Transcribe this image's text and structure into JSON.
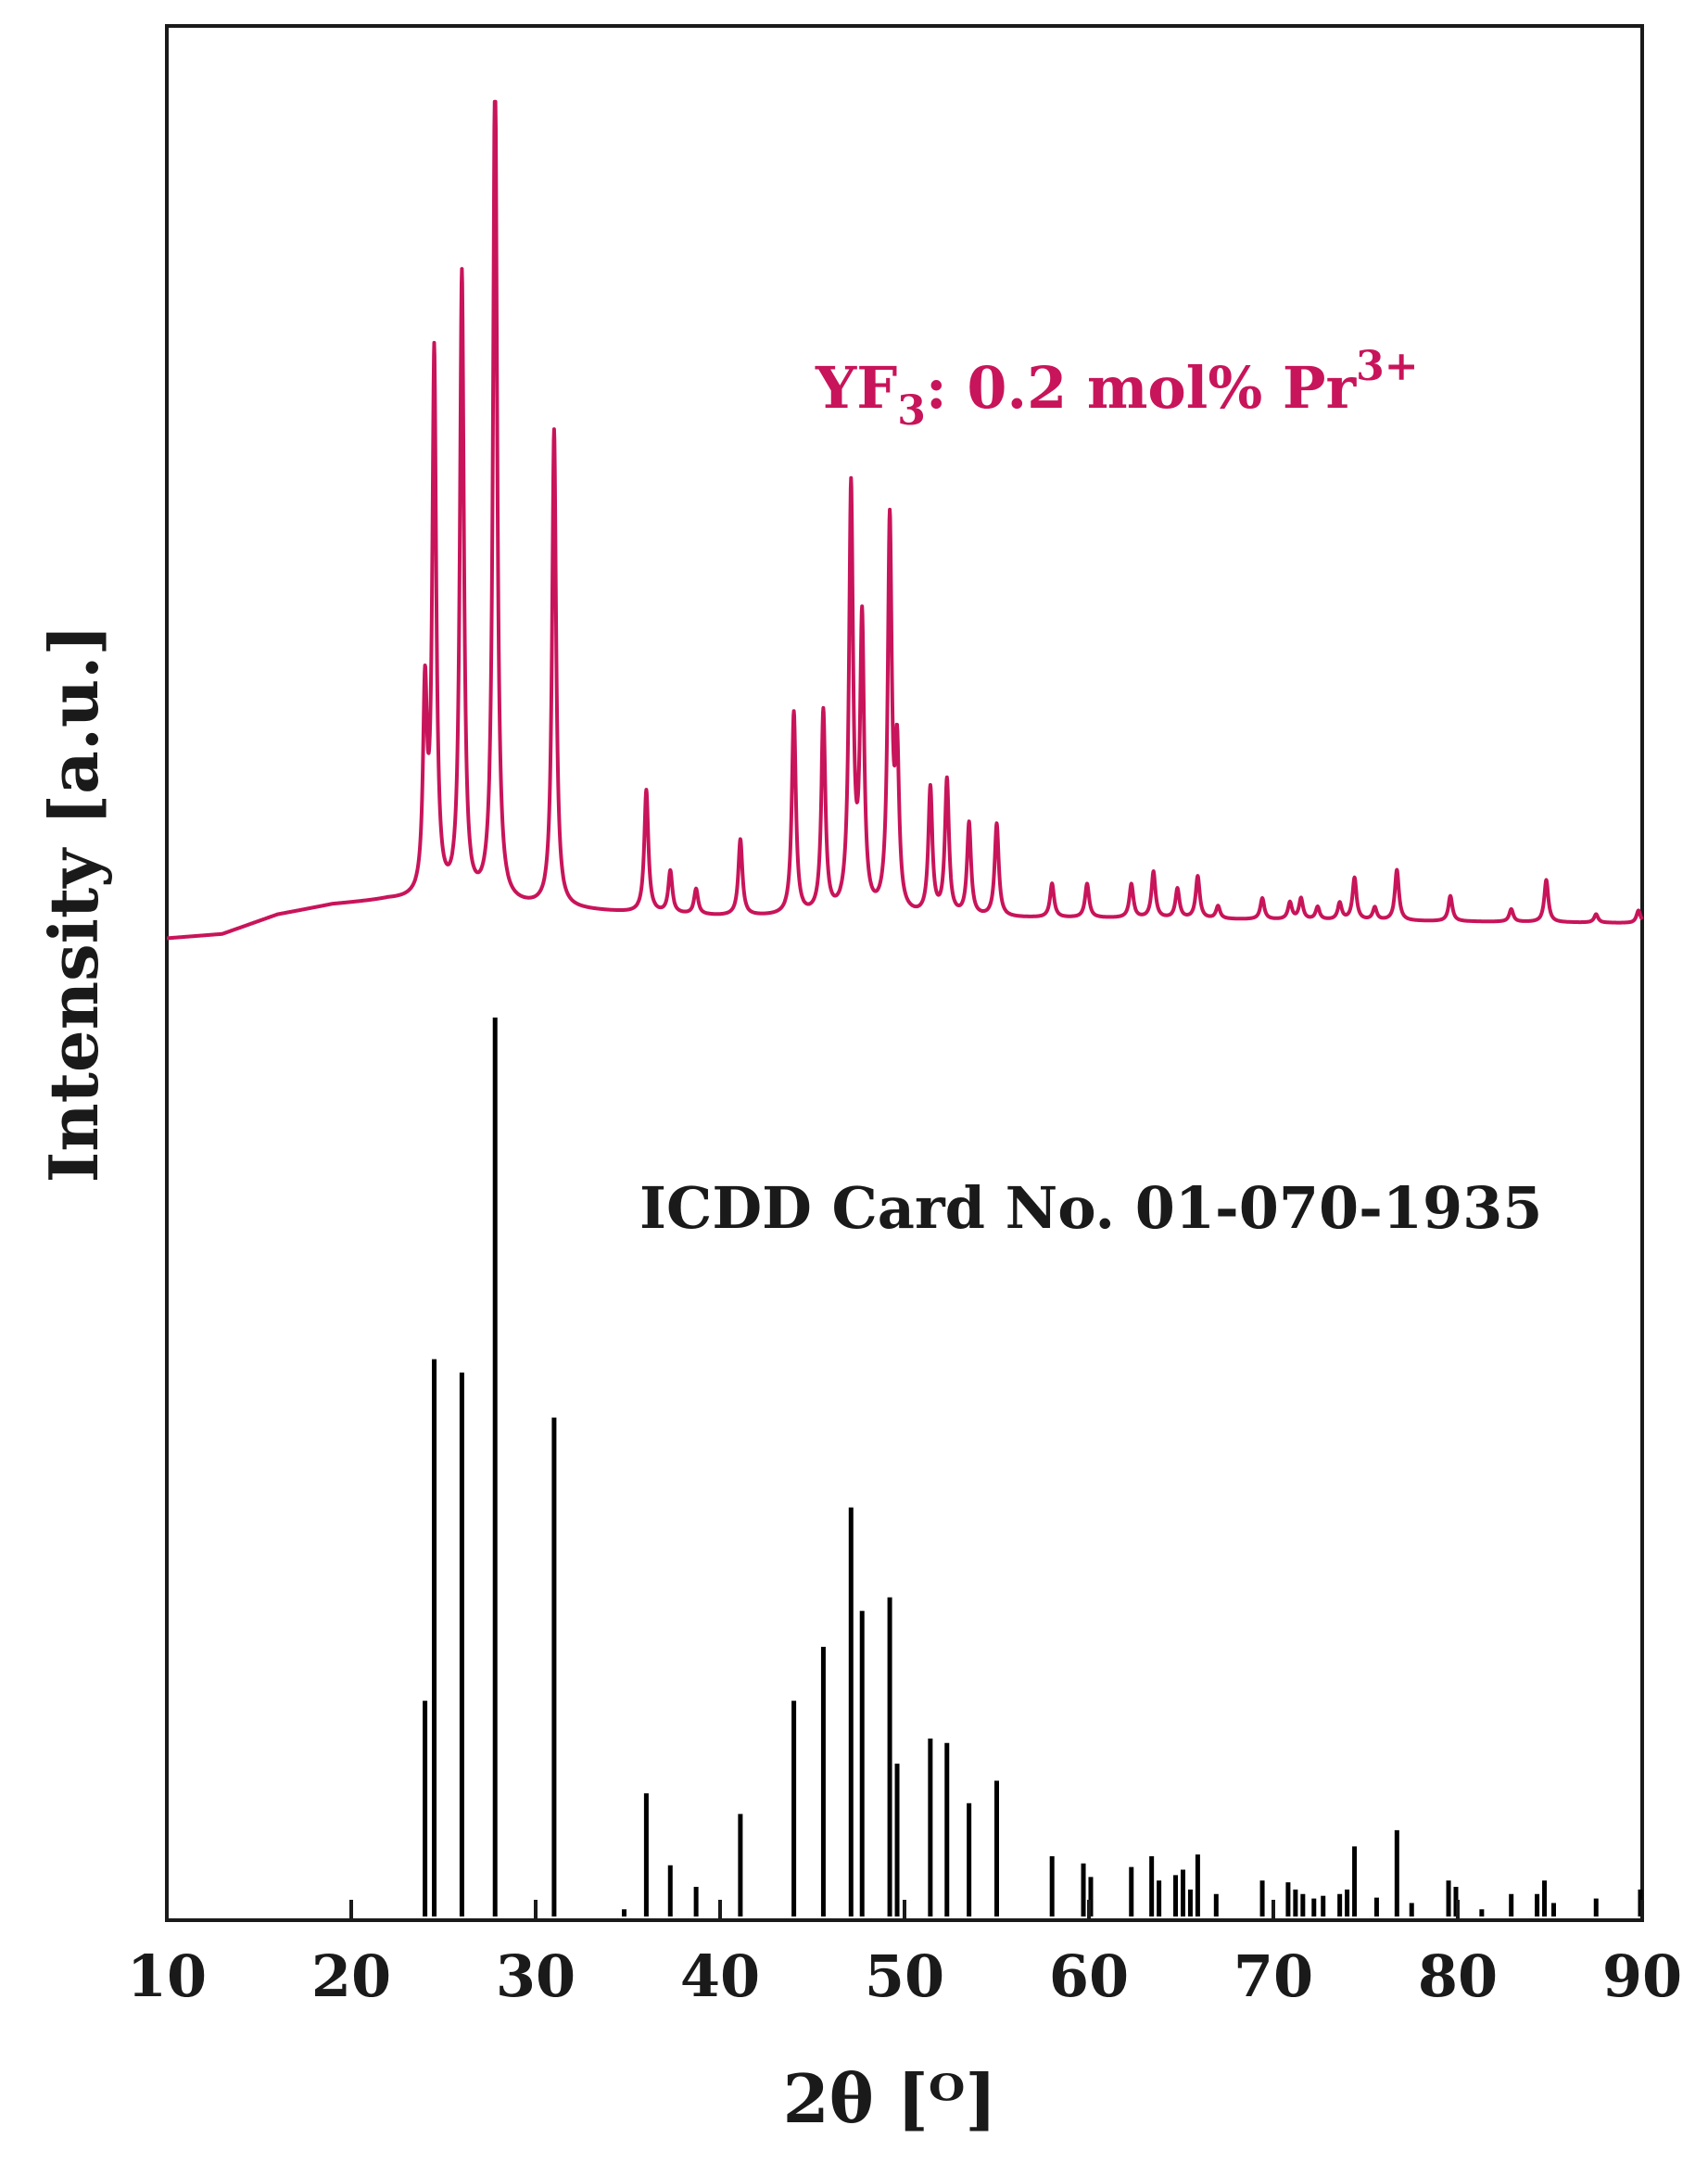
{
  "chart_data": {
    "type": "line",
    "xlabel": "2θ [ᴼ]",
    "ylabel": "Intensity [a.u.]",
    "xlim": [
      10,
      90
    ],
    "x_ticks": [
      "10",
      "20",
      "30",
      "40",
      "50",
      "60",
      "70",
      "80",
      "90"
    ],
    "y_ticks": [],
    "grid": false,
    "colors": {
      "measured": "#c8145a",
      "reference": "#000000",
      "axes": "#1a1a1a"
    },
    "series": [
      {
        "name": "YF3: 0.2 mol% Pr3+",
        "label_parts": {
          "base": "YF",
          "sub": "3",
          "mid": ": 0.2 mol% Pr",
          "sup": "3+"
        },
        "kind": "pattern",
        "baseline": [
          [
            10,
            0.03
          ],
          [
            13,
            0.035
          ],
          [
            16,
            0.058
          ],
          [
            19,
            0.07
          ],
          [
            22,
            0.075
          ],
          [
            25,
            0.072
          ],
          [
            30,
            0.066
          ],
          [
            35,
            0.06
          ],
          [
            40,
            0.056
          ],
          [
            50,
            0.054
          ],
          [
            60,
            0.054
          ],
          [
            70,
            0.052
          ],
          [
            80,
            0.05
          ],
          [
            90,
            0.048
          ]
        ],
        "peaks": [
          [
            24.0,
            0.235
          ],
          [
            24.5,
            0.64
          ],
          [
            26.0,
            0.74
          ],
          [
            27.8,
            1.0
          ],
          [
            31.0,
            0.565
          ],
          [
            36.0,
            0.145
          ],
          [
            37.3,
            0.05
          ],
          [
            38.7,
            0.03
          ],
          [
            41.1,
            0.09
          ],
          [
            44.0,
            0.24
          ],
          [
            45.6,
            0.24
          ],
          [
            47.1,
            0.5
          ],
          [
            47.7,
            0.34
          ],
          [
            49.2,
            0.46
          ],
          [
            49.6,
            0.18
          ],
          [
            51.4,
            0.15
          ],
          [
            52.3,
            0.16
          ],
          [
            53.5,
            0.11
          ],
          [
            55.0,
            0.11
          ],
          [
            58.0,
            0.04
          ],
          [
            59.9,
            0.04
          ],
          [
            62.3,
            0.04
          ],
          [
            63.5,
            0.055
          ],
          [
            64.8,
            0.035
          ],
          [
            65.9,
            0.05
          ],
          [
            67.0,
            0.015
          ],
          [
            69.4,
            0.025
          ],
          [
            70.9,
            0.02
          ],
          [
            71.5,
            0.025
          ],
          [
            72.4,
            0.015
          ],
          [
            73.6,
            0.02
          ],
          [
            74.4,
            0.05
          ],
          [
            75.5,
            0.015
          ],
          [
            76.7,
            0.06
          ],
          [
            79.6,
            0.03
          ],
          [
            82.9,
            0.015
          ],
          [
            84.8,
            0.05
          ],
          [
            87.5,
            0.01
          ],
          [
            89.8,
            0.015
          ]
        ]
      },
      {
        "name": "ICDD Card No. 01-070-1935",
        "kind": "stick",
        "sticks": [
          [
            24.0,
            0.24
          ],
          [
            24.5,
            0.62
          ],
          [
            26.0,
            0.605
          ],
          [
            27.8,
            1.0
          ],
          [
            31.0,
            0.555
          ],
          [
            34.8,
            0.008
          ],
          [
            36.0,
            0.137
          ],
          [
            37.3,
            0.057
          ],
          [
            38.7,
            0.033
          ],
          [
            41.1,
            0.114
          ],
          [
            44.0,
            0.24
          ],
          [
            45.6,
            0.3
          ],
          [
            47.1,
            0.455
          ],
          [
            47.7,
            0.34
          ],
          [
            49.2,
            0.355
          ],
          [
            49.6,
            0.17
          ],
          [
            51.4,
            0.198
          ],
          [
            52.3,
            0.193
          ],
          [
            53.5,
            0.126
          ],
          [
            55.0,
            0.151
          ],
          [
            58.0,
            0.067
          ],
          [
            59.7,
            0.059
          ],
          [
            60.1,
            0.044
          ],
          [
            62.3,
            0.055
          ],
          [
            63.4,
            0.067
          ],
          [
            63.8,
            0.04
          ],
          [
            64.7,
            0.046
          ],
          [
            65.1,
            0.052
          ],
          [
            65.5,
            0.03
          ],
          [
            65.9,
            0.069
          ],
          [
            66.9,
            0.025
          ],
          [
            69.4,
            0.04
          ],
          [
            70.8,
            0.038
          ],
          [
            71.2,
            0.03
          ],
          [
            71.6,
            0.025
          ],
          [
            72.2,
            0.02
          ],
          [
            72.7,
            0.023
          ],
          [
            73.6,
            0.025
          ],
          [
            74.0,
            0.03
          ],
          [
            74.4,
            0.078
          ],
          [
            75.6,
            0.021
          ],
          [
            76.7,
            0.096
          ],
          [
            77.5,
            0.015
          ],
          [
            79.5,
            0.04
          ],
          [
            79.9,
            0.033
          ],
          [
            81.3,
            0.008
          ],
          [
            82.9,
            0.025
          ],
          [
            84.3,
            0.025
          ],
          [
            84.7,
            0.04
          ],
          [
            85.2,
            0.015
          ],
          [
            87.5,
            0.02
          ],
          [
            89.9,
            0.03
          ]
        ]
      }
    ]
  }
}
